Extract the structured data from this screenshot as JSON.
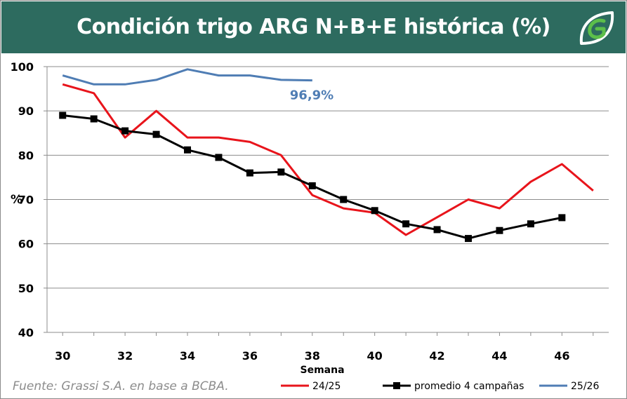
{
  "header": {
    "title": "Condición trigo ARG N+B+E histórica (%)",
    "logo_icon": "leaf-g-logo-icon",
    "background_color": "#2d6b5f"
  },
  "source": "Fuente: Grassi S.A. en base a BCBA.",
  "chart_data": {
    "type": "line",
    "title": "Condición trigo ARG N+B+E histórica (%)",
    "xlabel": "Semana",
    "ylabel": "%",
    "xlim": [
      29.5,
      47.5
    ],
    "ylim": [
      40,
      100
    ],
    "x_ticks": [
      30,
      32,
      34,
      36,
      38,
      40,
      42,
      44,
      46
    ],
    "y_ticks": [
      40,
      50,
      60,
      70,
      80,
      90,
      100
    ],
    "grid": "horizontal",
    "legend_position": "bottom",
    "series": [
      {
        "name": "24/25",
        "color": "#e8141b",
        "marker": "none",
        "x": [
          30,
          31,
          32,
          33,
          34,
          35,
          36,
          37,
          38,
          39,
          40,
          41,
          42,
          43,
          44,
          45,
          46,
          47
        ],
        "values": [
          96,
          94,
          84,
          90,
          84,
          84,
          83,
          80,
          71,
          68,
          67,
          62,
          66,
          70,
          68,
          74,
          78,
          72
        ]
      },
      {
        "name": "promedio 4 campañas",
        "color": "#000000",
        "marker": "square",
        "x": [
          30,
          31,
          32,
          33,
          34,
          35,
          36,
          37,
          38,
          39,
          40,
          41,
          42,
          43,
          44,
          45,
          46
        ],
        "values": [
          89,
          88.2,
          85.5,
          84.7,
          81.2,
          79.5,
          76,
          76.2,
          73.1,
          70,
          67.5,
          64.5,
          63.2,
          61.2,
          63,
          64.5,
          65.9
        ]
      },
      {
        "name": "25/26",
        "color": "#4f7db4",
        "marker": "none",
        "x": [
          30,
          31,
          32,
          33,
          34,
          35,
          36,
          37,
          38
        ],
        "values": [
          98,
          96,
          96,
          97,
          99.4,
          98,
          98,
          97,
          96.9
        ]
      }
    ],
    "annotations": [
      {
        "text": "96,9%",
        "x": 38,
        "y": 96.9,
        "color": "#4f7db4"
      }
    ]
  }
}
